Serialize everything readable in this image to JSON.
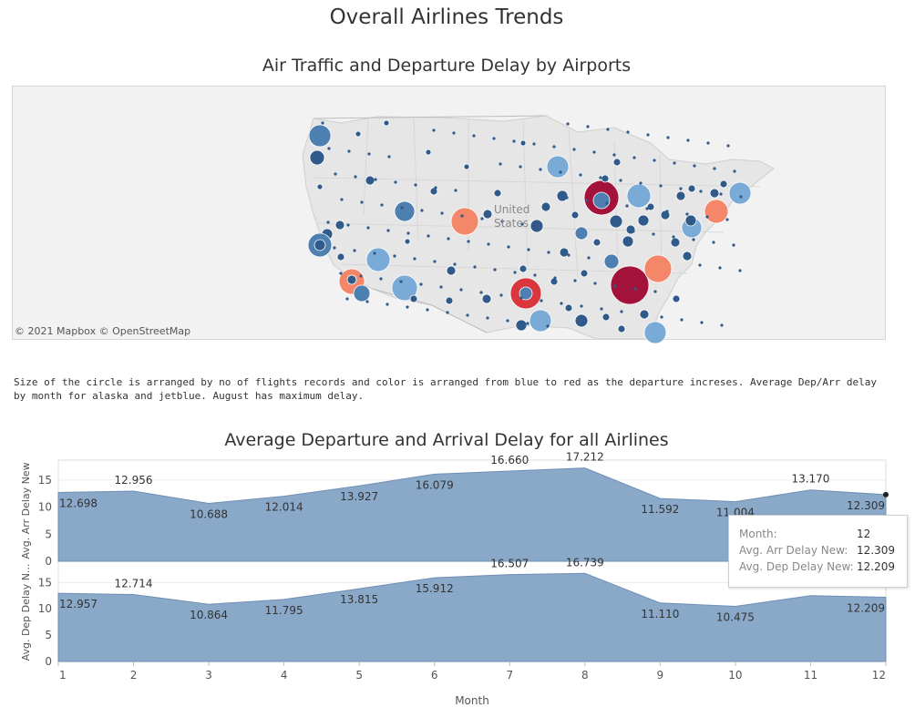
{
  "page_title": "Overall Airlines Trends",
  "map": {
    "title": "Air Traffic and Departure Delay by Airports",
    "country_label_line1": "United",
    "country_label_line2": "States",
    "attribution": "© 2021 Mapbox © OpenStreetMap"
  },
  "description": "Size of the circle is arranged by no of flights records and color is arranged from blue to red as the departure increses. Average Dep/Arr delay by month for alaska and jetblue. August has maximum delay.",
  "colors": {
    "area_fill": "#8aa8c8",
    "area_line": "#6f8fb5",
    "bubble_dark": "#2f5a8a",
    "bubble_mid": "#4d7fb0",
    "bubble_light": "#7aaad6",
    "bubble_salmon": "#f4866a",
    "bubble_red": "#d9363e",
    "bubble_crimson": "#a2123a"
  },
  "tooltip": {
    "month_label": "Month:",
    "month_value": "12",
    "arr_label": "Avg. Arr Delay New:",
    "arr_value": "12.309",
    "dep_label": "Avg. Dep Delay New:",
    "dep_value": "12.209"
  },
  "chart_data": {
    "type": "area",
    "title": "Average Departure and Arrival Delay for all Airlines",
    "xlabel": "Month",
    "x": [
      1,
      2,
      3,
      4,
      5,
      6,
      7,
      8,
      9,
      10,
      11,
      12
    ],
    "series": [
      {
        "name": "Avg. Arr Delay New",
        "axis_label": "Avg. Arr Delay New",
        "values": [
          12.698,
          12.956,
          10.688,
          12.014,
          13.927,
          16.079,
          16.66,
          17.212,
          11.592,
          11.004,
          13.17,
          12.309
        ],
        "labels": [
          "12.698",
          "12.956",
          "10.688",
          "12.014",
          "13.927",
          "16.079",
          "16.660",
          "17.212",
          "11.592",
          "11.004",
          "13.170",
          "12.309"
        ],
        "ylim": [
          0,
          18
        ],
        "yticks": [
          0,
          5,
          10,
          15
        ]
      },
      {
        "name": "Avg. Dep Delay New",
        "axis_label": "Avg. Dep Delay N...",
        "values": [
          12.957,
          12.714,
          10.864,
          11.795,
          13.815,
          15.912,
          16.507,
          16.739,
          11.11,
          10.475,
          12.5,
          12.209
        ],
        "labels": [
          "12.957",
          "12.714",
          "10.864",
          "11.795",
          "13.815",
          "15.912",
          "16.507",
          "16.739",
          "11.110",
          "10.475",
          "",
          "12.209"
        ],
        "ylim": [
          0,
          18
        ],
        "yticks": [
          0,
          5,
          10,
          15
        ]
      }
    ]
  }
}
